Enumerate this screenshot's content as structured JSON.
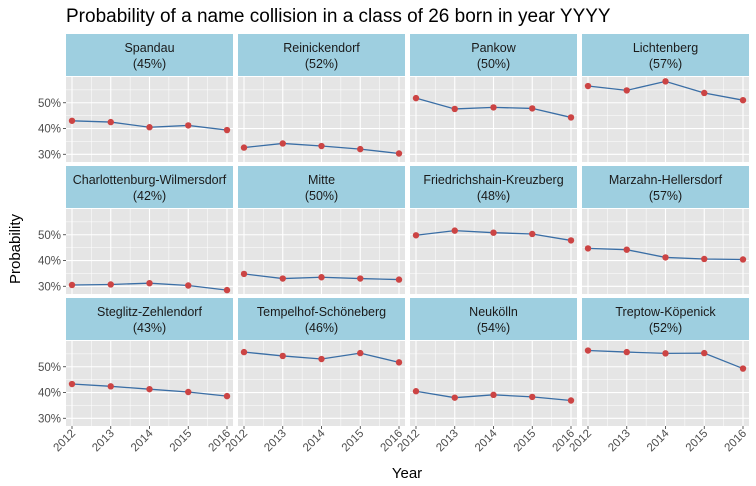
{
  "chart_data": {
    "type": "line",
    "title": "Probability of a name collision in a class of 26 born in year YYYY",
    "xlabel": "Year",
    "ylabel": "Probability",
    "x": [
      2012,
      2013,
      2014,
      2015,
      2016
    ],
    "ylim": [
      0.27,
      0.6
    ],
    "yticks": [
      0.3,
      0.4,
      0.5
    ],
    "ytick_labels": [
      "30%",
      "40%",
      "50%"
    ],
    "grid": true,
    "layout": "facet-grid 3x4",
    "colors": {
      "panel_bg": "#e5e5e5",
      "strip_bg": "#9ecfe0",
      "line": "#3a6ea5",
      "point": "#cc4444",
      "grid": "#ffffff"
    },
    "panels": [
      {
        "name": "Spandau",
        "pct": "(45%)",
        "values": [
          0.43,
          0.425,
          0.405,
          0.412,
          0.394
        ]
      },
      {
        "name": "Reinickendorf",
        "pct": "(52%)",
        "values": [
          0.326,
          0.342,
          0.332,
          0.32,
          0.303
        ]
      },
      {
        "name": "Pankow",
        "pct": "(50%)",
        "values": [
          0.518,
          0.476,
          0.482,
          0.478,
          0.443
        ]
      },
      {
        "name": "Lichtenberg",
        "pct": "(57%)",
        "values": [
          0.565,
          0.548,
          0.583,
          0.538,
          0.51
        ]
      },
      {
        "name": "Charlottenburg-Wilmersdorf",
        "pct": "(42%)",
        "values": [
          0.305,
          0.307,
          0.312,
          0.303,
          0.285
        ]
      },
      {
        "name": "Mitte",
        "pct": "(50%)",
        "values": [
          0.348,
          0.33,
          0.335,
          0.33,
          0.326
        ]
      },
      {
        "name": "Friedrichshain-Kreuzberg",
        "pct": "(48%)",
        "values": [
          0.498,
          0.516,
          0.508,
          0.503,
          0.478
        ]
      },
      {
        "name": "Marzahn-Hellersdorf",
        "pct": "(57%)",
        "values": [
          0.447,
          0.442,
          0.412,
          0.406,
          0.404
        ]
      },
      {
        "name": "Steglitz-Zehlendorf",
        "pct": "(43%)",
        "values": [
          0.433,
          0.424,
          0.413,
          0.402,
          0.386
        ]
      },
      {
        "name": "Tempelhof-Schöneberg",
        "pct": "(46%)",
        "values": [
          0.557,
          0.542,
          0.53,
          0.553,
          0.517
        ]
      },
      {
        "name": "Neukölln",
        "pct": "(54%)",
        "values": [
          0.405,
          0.38,
          0.391,
          0.383,
          0.369
        ]
      },
      {
        "name": "Treptow-Köpenick",
        "pct": "(52%)",
        "values": [
          0.563,
          0.557,
          0.552,
          0.553,
          0.493
        ]
      }
    ]
  }
}
